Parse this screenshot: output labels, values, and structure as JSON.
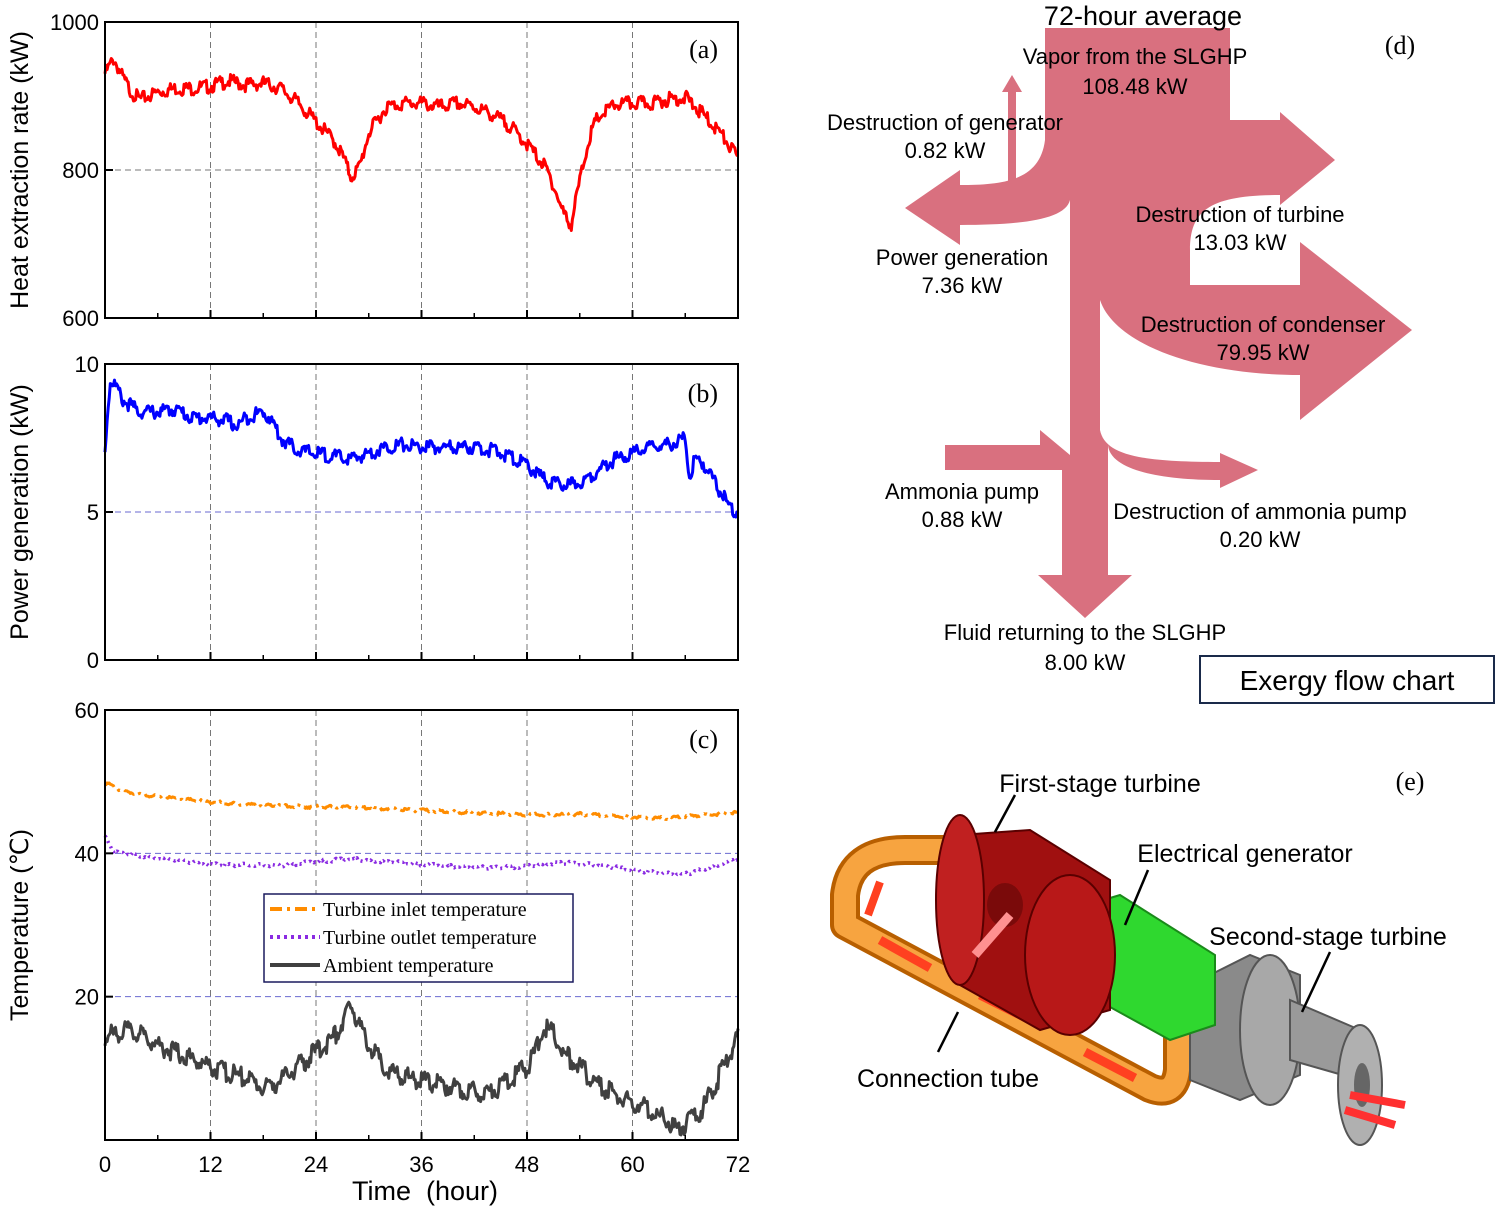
{
  "chart_data": [
    {
      "type": "line",
      "panel_label": "(a)",
      "ylabel": "Heat extraction rate (kW)",
      "ylim": [
        600,
        1000
      ],
      "yticks": [
        "600",
        "800",
        "1000"
      ],
      "xlim": [
        0,
        72
      ],
      "grid": true,
      "series": [
        {
          "color": "#ff0000",
          "x": [
            0,
            1,
            2,
            3,
            4,
            6,
            8,
            10,
            12,
            14,
            16,
            18,
            20,
            22,
            24,
            26,
            27,
            28,
            29,
            30,
            32,
            34,
            36,
            38,
            40,
            42,
            44,
            46,
            48,
            50,
            51,
            52,
            53,
            54,
            55,
            56,
            58,
            60,
            62,
            64,
            66,
            68,
            70,
            72
          ],
          "values": [
            935,
            955,
            930,
            910,
            900,
            910,
            915,
            915,
            918,
            925,
            920,
            922,
            915,
            895,
            870,
            845,
            825,
            795,
            810,
            855,
            890,
            895,
            895,
            890,
            895,
            890,
            880,
            865,
            840,
            810,
            785,
            750,
            730,
            790,
            845,
            875,
            893,
            895,
            895,
            900,
            903,
            880,
            855,
            820
          ]
        }
      ]
    },
    {
      "type": "line",
      "panel_label": "(b)",
      "ylabel": "Power generation (kW)",
      "ylim": [
        0,
        10
      ],
      "yticks": [
        "0",
        "5",
        "10"
      ],
      "xlim": [
        0,
        72
      ],
      "grid": true,
      "series": [
        {
          "color": "#0000ff",
          "x": [
            0,
            0.3,
            0.6,
            1,
            2,
            4,
            6,
            8,
            10,
            12,
            14,
            15,
            16,
            17,
            18,
            19,
            20,
            22,
            24,
            26,
            28,
            30,
            32,
            34,
            36,
            38,
            40,
            42,
            44,
            46,
            48,
            50,
            52,
            54,
            56,
            58,
            60,
            62,
            64,
            66,
            66.5,
            67,
            68,
            69,
            70,
            71,
            72
          ],
          "values": [
            7.1,
            8.6,
            9.5,
            9.5,
            8.9,
            8.5,
            8.5,
            8.6,
            8.3,
            8.3,
            8.2,
            8.0,
            8.3,
            8.4,
            8.5,
            8.2,
            7.6,
            7.2,
            7.1,
            7.0,
            6.9,
            7.1,
            7.3,
            7.4,
            7.3,
            7.3,
            7.3,
            7.3,
            7.2,
            7.0,
            6.7,
            6.2,
            6.0,
            6.1,
            6.5,
            6.9,
            7.1,
            7.3,
            7.4,
            7.6,
            6.3,
            6.8,
            6.8,
            6.3,
            5.8,
            5.3,
            5.1
          ]
        }
      ]
    },
    {
      "type": "line",
      "panel_label": "(c)",
      "xlabel": "Time  (hour)",
      "ylabel": "Temperature (℃)",
      "ylim": [
        0,
        60
      ],
      "yticks": [
        "20",
        "40",
        "60"
      ],
      "xlim": [
        0,
        72
      ],
      "xticks": [
        "0",
        "12",
        "24",
        "36",
        "48",
        "60",
        "72"
      ],
      "grid": true,
      "legend": "center-left",
      "series": [
        {
          "name": "Turbine inlet temperature",
          "color": "#ff8c00",
          "dash": "dashdot",
          "x": [
            0,
            2,
            6,
            12,
            18,
            24,
            30,
            36,
            42,
            48,
            54,
            60,
            64,
            66,
            68,
            72
          ],
          "values": [
            50,
            48.8,
            48,
            47.3,
            46.8,
            46.6,
            46.5,
            46.1,
            45.8,
            45.5,
            45.6,
            45.2,
            45,
            45.3,
            45.5,
            45.8
          ]
        },
        {
          "name": "Turbine outlet temperature",
          "color": "#8a2be2",
          "dash": "dotted",
          "x": [
            0,
            1,
            4,
            8,
            12,
            16,
            20,
            24,
            28,
            32,
            36,
            40,
            44,
            48,
            52,
            56,
            60,
            64,
            66,
            68,
            70,
            72
          ],
          "values": [
            42.5,
            40.3,
            39.8,
            39.2,
            38.6,
            38.5,
            38.4,
            39,
            39.3,
            39,
            38.6,
            38.3,
            38.1,
            38.3,
            38.8,
            38.5,
            37.8,
            37.3,
            37.2,
            37.9,
            38.6,
            39.3
          ]
        },
        {
          "name": "Ambient temperature",
          "color": "#404040",
          "dash": "solid",
          "x": [
            0,
            2,
            4,
            6,
            8,
            10,
            12,
            14,
            16,
            18,
            20,
            22,
            24,
            26,
            27,
            28,
            30,
            32,
            34,
            36,
            38,
            40,
            42,
            44,
            46,
            48,
            49,
            50,
            51,
            52,
            54,
            56,
            58,
            60,
            62,
            63,
            64,
            65,
            66,
            68,
            70,
            72
          ],
          "values": [
            15,
            16,
            15.5,
            14,
            13,
            12,
            11,
            10,
            9.5,
            8,
            9,
            11,
            13,
            15,
            17,
            19.5,
            14,
            10.5,
            9.5,
            9,
            8.5,
            8,
            7.5,
            7.5,
            9,
            11,
            13,
            16.5,
            15.5,
            13,
            11,
            8.5,
            7,
            6,
            5,
            4,
            3.5,
            2,
            3,
            5,
            10,
            15
          ]
        }
      ]
    }
  ],
  "sankey": {
    "panel_label": "(d)",
    "title": "72-hour average",
    "vapor": {
      "name": "Vapor from the SLGHP",
      "value": "108.48 kW"
    },
    "gen_destruction": {
      "name": "Destruction of generator",
      "value": "0.82 kW"
    },
    "turbine_destruction": {
      "name": "Destruction of turbine",
      "value": "13.03 kW"
    },
    "power": {
      "name": "Power generation",
      "value": "7.36 kW"
    },
    "condenser_destruction": {
      "name": "Destruction of condenser",
      "value": "79.95 kW"
    },
    "pump_in": {
      "name": "Ammonia pump",
      "value": "0.88 kW"
    },
    "pump_destruction": {
      "name": "Destruction of ammonia pump",
      "value": "0.20 kW"
    },
    "returning": {
      "name": "Fluid returning to the SLGHP",
      "value": "8.00 kW"
    },
    "caption": "Exergy flow chart",
    "color": "#d9707f"
  },
  "turbine": {
    "panel_label": "(e)",
    "first_stage": "First-stage turbine",
    "generator": "Electrical generator",
    "second_stage": "Second-stage turbine",
    "tube": "Connection tube"
  }
}
